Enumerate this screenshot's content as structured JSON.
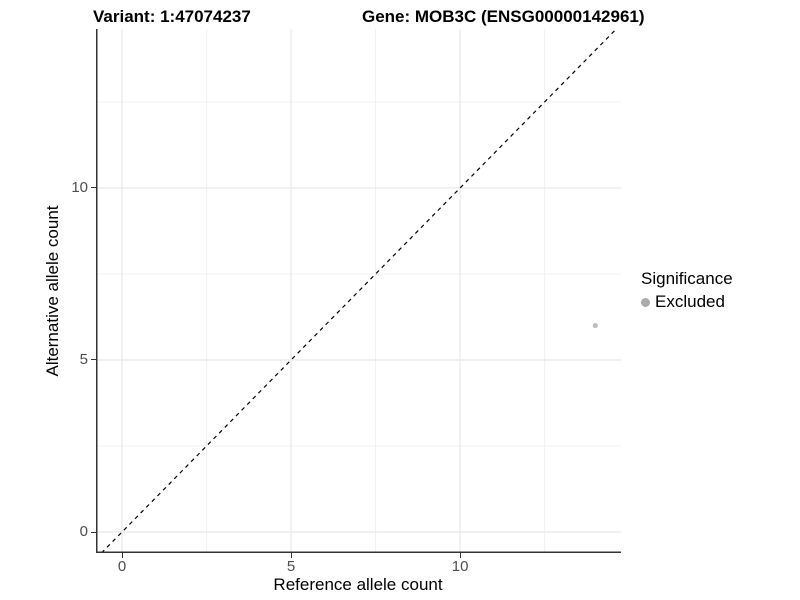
{
  "figure": {
    "background": "#ffffff"
  },
  "chart_data": {
    "type": "scatter",
    "title_left": "Variant: 1:47074237",
    "title_right": "Gene: MOB3C (ENSG00000142961)",
    "xlabel": "Reference allele count",
    "ylabel": "Alternative allele count",
    "xlim": [
      -0.77,
      14.76
    ],
    "ylim": [
      -0.61,
      14.62
    ],
    "xticks": [
      0,
      5,
      10
    ],
    "yticks": [
      0,
      5,
      10
    ],
    "xticks_minor": [
      2.5,
      7.5,
      12.5
    ],
    "yticks_minor": [
      2.5,
      7.5,
      12.5
    ],
    "grid": true,
    "identity_line": {
      "style": "dashed",
      "color": "#000000"
    },
    "series": [
      {
        "name": "Excluded",
        "color": "#bdbdbd",
        "points": [
          {
            "x": 14,
            "y": 6
          }
        ]
      }
    ],
    "legend": {
      "title": "Significance",
      "position": "right",
      "items": [
        {
          "label": "Excluded",
          "color": "#ababab"
        }
      ]
    },
    "colors": {
      "axis_line": "#333333",
      "grid_major": "#e8e8e8",
      "grid_minor": "#f1f1f1",
      "tick_label": "#4d4d4d"
    }
  }
}
